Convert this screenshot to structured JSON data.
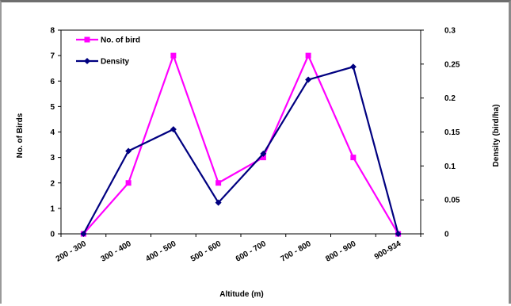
{
  "chart_data": {
    "type": "line",
    "categories": [
      "200 - 300",
      "300 - 400",
      "400 - 500",
      "500 - 600",
      "600 - 700",
      "700 - 800",
      "800 - 900",
      "900-934"
    ],
    "xlabel": "Altitude (m)",
    "ylabel": "No. of Birds",
    "y2label": "Density (bird/ha)",
    "ylim": [
      0,
      8
    ],
    "y2lim": [
      0,
      0.3
    ],
    "yticks": [
      "0",
      "1",
      "2",
      "3",
      "4",
      "5",
      "6",
      "7",
      "8"
    ],
    "y2ticks": [
      "0",
      "0.05",
      "0.1",
      "0.15",
      "0.2",
      "0.25",
      "0.3"
    ],
    "grid": false,
    "legend_position": "top-left",
    "series": [
      {
        "name": "No. of bird",
        "axis": "left",
        "color": "#ff00ff",
        "marker": "square",
        "values": [
          0,
          2,
          7,
          2,
          3,
          7,
          3,
          0
        ]
      },
      {
        "name": "Density",
        "axis": "right",
        "color": "#000080",
        "marker": "diamond",
        "values": [
          0,
          0.122,
          0.154,
          0.046,
          0.118,
          0.227,
          0.246,
          0
        ]
      }
    ]
  }
}
